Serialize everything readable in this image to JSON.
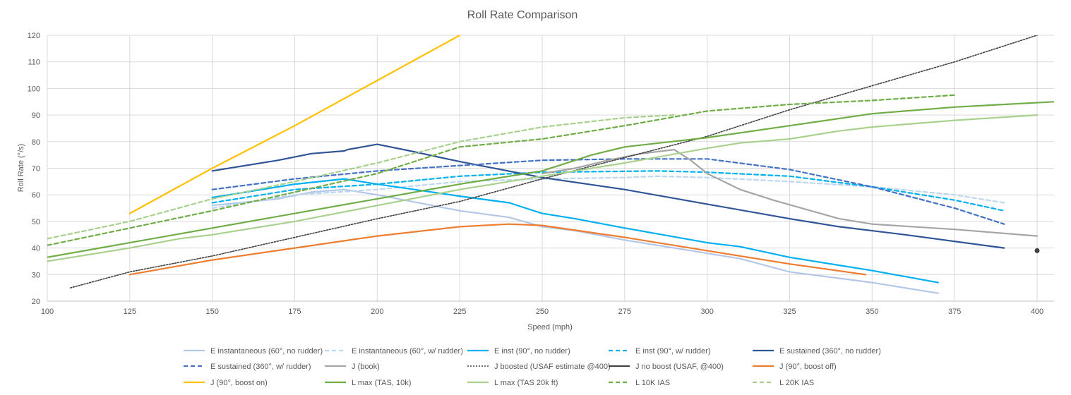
{
  "chart_data": {
    "type": "line",
    "title": "Roll Rate Comparison",
    "xlabel": "Speed (mph)",
    "ylabel": "Roll Rate (°/s)",
    "xlim": [
      100,
      405
    ],
    "ylim": [
      20,
      120
    ],
    "xticks": [
      100,
      125,
      150,
      175,
      200,
      225,
      250,
      275,
      300,
      325,
      350,
      375,
      400
    ],
    "yticks": [
      20,
      30,
      40,
      50,
      60,
      70,
      80,
      90,
      100,
      110,
      120
    ],
    "grid": true,
    "legend": "bottom",
    "series": [
      {
        "name": "E instantaneous (60°, no rudder)",
        "color": "#b4c7e7",
        "dash": "solid",
        "points": [
          [
            150,
            56
          ],
          [
            170,
            58.5
          ],
          [
            180,
            61
          ],
          [
            190,
            62
          ],
          [
            200,
            60
          ],
          [
            225,
            54
          ],
          [
            240,
            51.5
          ],
          [
            250,
            48
          ],
          [
            260,
            46.5
          ],
          [
            275,
            43
          ],
          [
            300,
            38
          ],
          [
            310,
            36
          ],
          [
            325,
            31
          ],
          [
            350,
            27
          ],
          [
            370,
            23
          ]
        ]
      },
      {
        "name": "E instantaneous (60°, w/ rudder)",
        "color": "#bdd7ee",
        "dash": "dashed",
        "points": [
          [
            150,
            55
          ],
          [
            175,
            60
          ],
          [
            200,
            62
          ],
          [
            225,
            65
          ],
          [
            250,
            66
          ],
          [
            275,
            66.5
          ],
          [
            285,
            67
          ],
          [
            300,
            66.5
          ],
          [
            325,
            65
          ],
          [
            350,
            63
          ],
          [
            375,
            60
          ],
          [
            390,
            57
          ]
        ]
      },
      {
        "name": "E inst (90°, no rudder)",
        "color": "#00b0f0",
        "dash": "solid",
        "points": [
          [
            150,
            59
          ],
          [
            175,
            64
          ],
          [
            190,
            66
          ],
          [
            200,
            64
          ],
          [
            225,
            59.5
          ],
          [
            240,
            57
          ],
          [
            250,
            53
          ],
          [
            260,
            51
          ],
          [
            275,
            47.5
          ],
          [
            300,
            42
          ],
          [
            310,
            40.5
          ],
          [
            325,
            36.5
          ],
          [
            350,
            31.5
          ],
          [
            370,
            27
          ]
        ]
      },
      {
        "name": "E inst (90°, w/ rudder)",
        "color": "#00b0f0",
        "dash": "dashed",
        "points": [
          [
            150,
            57
          ],
          [
            175,
            62
          ],
          [
            200,
            64
          ],
          [
            225,
            67
          ],
          [
            250,
            68.5
          ],
          [
            285,
            69
          ],
          [
            300,
            68.5
          ],
          [
            325,
            67
          ],
          [
            350,
            63
          ],
          [
            375,
            58
          ],
          [
            390,
            54
          ]
        ]
      },
      {
        "name": "E sustained (360°, no rudder)",
        "color": "#2f5597",
        "dash": "solid",
        "points": [
          [
            150,
            69
          ],
          [
            170,
            73
          ],
          [
            180,
            75.5
          ],
          [
            190,
            76.5
          ],
          [
            191,
            77
          ],
          [
            200,
            79
          ],
          [
            210,
            76.5
          ],
          [
            225,
            72.5
          ],
          [
            250,
            66.5
          ],
          [
            275,
            62
          ],
          [
            300,
            56.5
          ],
          [
            325,
            51
          ],
          [
            340,
            48
          ],
          [
            360,
            45
          ],
          [
            390,
            40
          ]
        ]
      },
      {
        "name": "E sustained (360°, w/ rudder)",
        "color": "#4472c4",
        "dash": "dashed",
        "points": [
          [
            150,
            62
          ],
          [
            175,
            66
          ],
          [
            200,
            69
          ],
          [
            225,
            71
          ],
          [
            250,
            73
          ],
          [
            275,
            73.5
          ],
          [
            300,
            73.5
          ],
          [
            325,
            69.5
          ],
          [
            350,
            63
          ],
          [
            375,
            55
          ],
          [
            390,
            49
          ]
        ]
      },
      {
        "name": "J (book)",
        "color": "#a5a5a5",
        "dash": "solid",
        "points": [
          [
            250,
            68
          ],
          [
            260,
            70
          ],
          [
            270,
            73
          ],
          [
            280,
            75.5
          ],
          [
            290,
            77
          ],
          [
            295,
            73
          ],
          [
            300,
            68
          ],
          [
            310,
            62
          ],
          [
            320,
            58
          ],
          [
            340,
            51
          ],
          [
            350,
            49
          ],
          [
            375,
            47
          ],
          [
            400,
            44.5
          ]
        ]
      },
      {
        "name": "J boosted (USAF estimate @400)",
        "color": "#404040",
        "dash": "dotted",
        "points": [
          [
            107,
            25
          ],
          [
            125,
            31
          ],
          [
            150,
            37
          ],
          [
            175,
            44
          ],
          [
            200,
            51
          ],
          [
            225,
            57.5
          ],
          [
            250,
            66
          ],
          [
            275,
            74
          ],
          [
            300,
            82
          ],
          [
            325,
            92
          ],
          [
            350,
            101
          ],
          [
            375,
            110
          ],
          [
            400,
            120
          ]
        ]
      },
      {
        "name": "J no boost (USAF, @400)",
        "color": "#404040",
        "dash": "solid",
        "marker": "dot",
        "points": [
          [
            400,
            39
          ]
        ]
      },
      {
        "name": "J (90°, boost off)",
        "color": "#ed7d31",
        "dash": "solid",
        "points": [
          [
            125,
            30
          ],
          [
            150,
            35.5
          ],
          [
            175,
            40
          ],
          [
            200,
            44.5
          ],
          [
            225,
            48
          ],
          [
            240,
            49
          ],
          [
            250,
            48.5
          ],
          [
            275,
            44
          ],
          [
            300,
            39
          ],
          [
            325,
            34
          ],
          [
            348,
            30
          ]
        ]
      },
      {
        "name": "J (90°, boost on)",
        "color": "#ffc000",
        "dash": "solid",
        "points": [
          [
            125,
            53
          ],
          [
            150,
            70
          ],
          [
            175,
            86
          ],
          [
            200,
            103
          ],
          [
            225,
            120
          ]
        ]
      },
      {
        "name": "L max (TAS, 10k)",
        "color": "#70ad47",
        "dash": "solid",
        "points": [
          [
            100,
            36.5
          ],
          [
            125,
            42
          ],
          [
            150,
            47.5
          ],
          [
            175,
            53
          ],
          [
            200,
            58.5
          ],
          [
            225,
            64
          ],
          [
            250,
            69
          ],
          [
            265,
            75
          ],
          [
            275,
            78
          ],
          [
            300,
            81.5
          ],
          [
            325,
            86
          ],
          [
            350,
            90.5
          ],
          [
            375,
            93
          ],
          [
            405,
            95
          ]
        ]
      },
      {
        "name": "L max (TAS 20k ft)",
        "color": "#a9d18e",
        "dash": "solid",
        "points": [
          [
            100,
            35
          ],
          [
            125,
            40
          ],
          [
            140,
            43.5
          ],
          [
            150,
            45
          ],
          [
            175,
            50
          ],
          [
            200,
            56
          ],
          [
            225,
            62
          ],
          [
            250,
            67
          ],
          [
            275,
            72
          ],
          [
            300,
            77.5
          ],
          [
            310,
            79.5
          ],
          [
            325,
            81
          ],
          [
            340,
            84
          ],
          [
            350,
            85.5
          ],
          [
            375,
            88
          ],
          [
            400,
            90
          ]
        ]
      },
      {
        "name": "L 10K IAS",
        "color": "#70ad47",
        "dash": "dashed",
        "points": [
          [
            100,
            41
          ],
          [
            125,
            47.5
          ],
          [
            150,
            54
          ],
          [
            175,
            61
          ],
          [
            200,
            68
          ],
          [
            225,
            78
          ],
          [
            250,
            81
          ],
          [
            275,
            86
          ],
          [
            300,
            91.5
          ],
          [
            325,
            94
          ],
          [
            350,
            95.5
          ],
          [
            375,
            97.5
          ]
        ]
      },
      {
        "name": "L 20K IAS",
        "color": "#a9d18e",
        "dash": "dashed",
        "points": [
          [
            100,
            43.5
          ],
          [
            125,
            50
          ],
          [
            150,
            58.5
          ],
          [
            175,
            65
          ],
          [
            200,
            72
          ],
          [
            225,
            80
          ],
          [
            250,
            85.5
          ],
          [
            275,
            89
          ],
          [
            290,
            90
          ]
        ]
      }
    ]
  }
}
